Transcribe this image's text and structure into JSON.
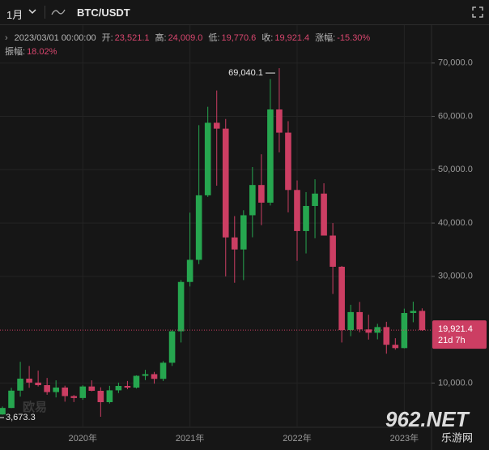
{
  "header": {
    "interval": "1月",
    "symbol": "BTC/USDT",
    "timestamp": "2023/03/01 00:00:00",
    "stats": [
      {
        "label": "开:",
        "value": "23,521.1"
      },
      {
        "label": "高:",
        "value": "24,009.0"
      },
      {
        "label": "低:",
        "value": "19,770.6"
      },
      {
        "label": "收:",
        "value": "19,921.4"
      },
      {
        "label": "涨幅:",
        "value": "-15.30%"
      },
      {
        "label": "振幅:",
        "value": "18.02%"
      }
    ]
  },
  "chart_data": {
    "type": "candlestick",
    "categories": [
      null,
      null,
      null,
      null,
      null,
      null,
      null,
      null,
      null,
      "2020年",
      null,
      null,
      null,
      null,
      null,
      null,
      null,
      null,
      null,
      null,
      null,
      "2021年",
      null,
      null,
      null,
      null,
      null,
      null,
      null,
      null,
      null,
      null,
      null,
      "2022年",
      null,
      null,
      null,
      null,
      null,
      null,
      null,
      null,
      null,
      null,
      null,
      "2023年",
      null,
      null
    ],
    "open": [
      4100,
      5320,
      8570,
      10820,
      10080,
      9600,
      8300,
      9150,
      7550,
      7190,
      9350,
      8540,
      6410,
      8630,
      9450,
      9140,
      11350,
      11660,
      10780,
      13800,
      19700,
      28950,
      33100,
      45200,
      58800,
      57700,
      37300,
      35040,
      41460,
      47130,
      43820,
      61300,
      56950,
      46200,
      38500,
      43200,
      45520,
      37650,
      31800,
      19930,
      23300,
      20050,
      19430,
      20490,
      17170,
      16550,
      23130,
      23521.1
    ],
    "high": [
      5600,
      9100,
      13970,
      13200,
      12320,
      10950,
      10500,
      9500,
      7750,
      9570,
      10500,
      9190,
      9470,
      10070,
      10380,
      11440,
      12470,
      12080,
      14100,
      19900,
      29300,
      41950,
      58350,
      61800,
      64850,
      59500,
      41300,
      42400,
      50500,
      52900,
      66999,
      69040.1,
      59100,
      47990,
      45800,
      48200,
      47450,
      40000,
      31960,
      24670,
      25200,
      22800,
      21100,
      21480,
      18400,
      23950,
      25250,
      24009.0
    ],
    "low": [
      4050,
      5300,
      7450,
      9100,
      9350,
      7800,
      7300,
      6500,
      6430,
      6850,
      8450,
      3673.3,
      6150,
      8120,
      8830,
      8970,
      10550,
      9880,
      10380,
      13200,
      17600,
      28100,
      32300,
      44900,
      47000,
      30000,
      28800,
      29300,
      37330,
      39600,
      43300,
      53250,
      42000,
      32900,
      34300,
      37150,
      37700,
      26700,
      17600,
      18780,
      19500,
      18150,
      18190,
      15500,
      16260,
      16500,
      21400,
      19770.6
    ],
    "close": [
      5320,
      8570,
      10820,
      10080,
      9600,
      8300,
      9150,
      7550,
      7190,
      9350,
      8540,
      6410,
      8630,
      9450,
      9140,
      11350,
      11660,
      10780,
      13800,
      19700,
      28950,
      33100,
      45200,
      58800,
      57700,
      37300,
      35040,
      41460,
      47130,
      43820,
      61300,
      56950,
      46200,
      38500,
      43200,
      45520,
      37650,
      31800,
      19930,
      23300,
      20050,
      19430,
      20490,
      17170,
      16550,
      23130,
      23521.1,
      19921.4
    ],
    "up_color": "#26a64f",
    "down_color": "#cc3e63",
    "ylim": [
      2000,
      76500
    ],
    "yticks": [
      {
        "value": 10000,
        "label": "10,000.0"
      },
      {
        "value": 30000,
        "label": "30,000.0"
      },
      {
        "value": 40000,
        "label": "40,000.0"
      },
      {
        "value": 50000,
        "label": "50,000.0"
      },
      {
        "value": 60000,
        "label": "60,000.0"
      },
      {
        "value": 70000,
        "label": "70,000.0"
      }
    ],
    "grid": true,
    "max_label": "69,040.1",
    "min_label": "3,673.3",
    "last_price_label": "19,921.4",
    "countdown": "21d 7h",
    "watermarks": [
      "欧易",
      "962.NET",
      "乐游网"
    ]
  }
}
